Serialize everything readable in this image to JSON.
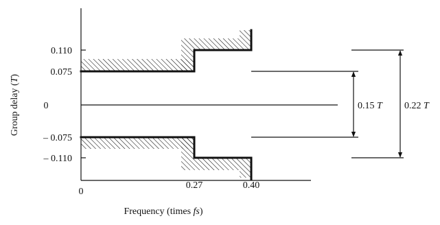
{
  "y_axis": {
    "label": "Group delay (",
    "label_italic": "T",
    "label_close": ")"
  },
  "x_axis": {
    "label": "Frequency (times ",
    "label_italic": "fs",
    "label_close": ")"
  },
  "y_ticks": [
    "0.110",
    "0.075",
    "0",
    "– 0.075",
    "– 0.110"
  ],
  "x_ticks": [
    "0",
    "0.27",
    "0.40"
  ],
  "dimensions": [
    {
      "value": "0.15 ",
      "unit": "T"
    },
    {
      "value": "0.22 ",
      "unit": "T"
    }
  ]
}
